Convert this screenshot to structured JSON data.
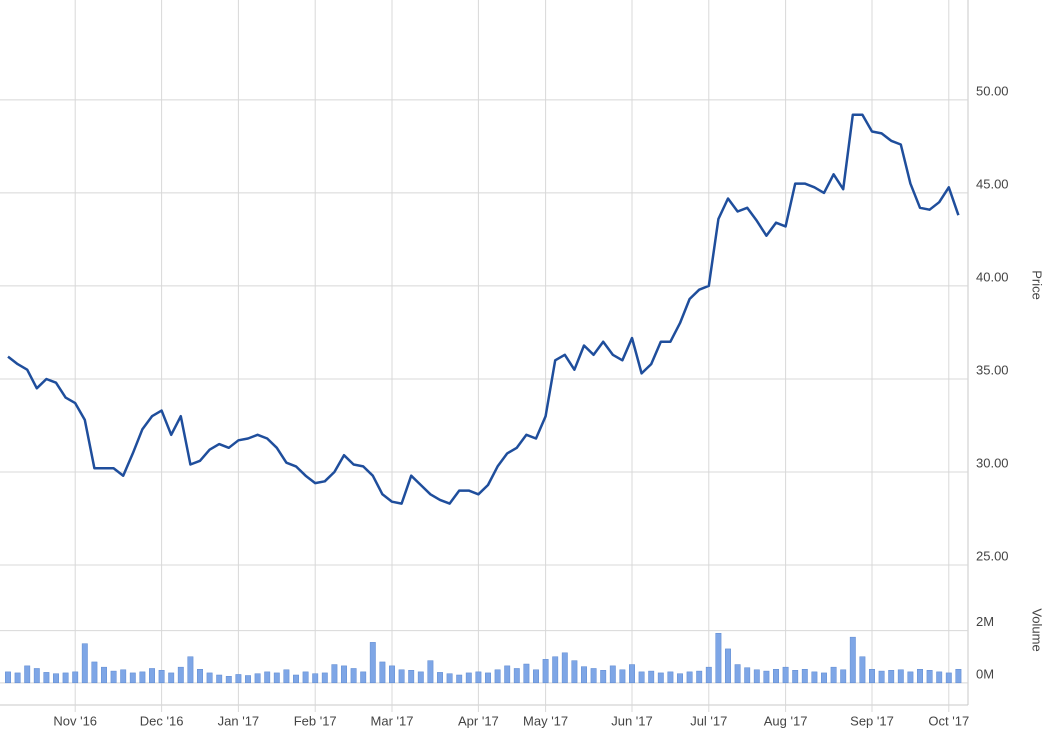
{
  "chart_data": [
    {
      "type": "line",
      "y_label": "Price",
      "color": "#1f4e9c",
      "grid": true,
      "ylim": [
        25,
        55.1
      ],
      "yticks": [
        {
          "value": 25,
          "label": "25.00"
        },
        {
          "value": 30,
          "label": "30.00"
        },
        {
          "value": 35,
          "label": "35.00"
        },
        {
          "value": 40,
          "label": "40.00"
        },
        {
          "value": 45,
          "label": "45.00"
        },
        {
          "value": 50,
          "label": "50.00"
        }
      ],
      "categories": [
        null,
        null,
        null,
        null,
        null,
        null,
        null,
        "Nov '16",
        null,
        null,
        null,
        null,
        null,
        null,
        null,
        null,
        "Dec '16",
        null,
        null,
        null,
        null,
        null,
        null,
        null,
        "Jan '17",
        null,
        null,
        null,
        null,
        null,
        null,
        null,
        "Feb '17",
        null,
        null,
        null,
        null,
        null,
        null,
        null,
        "Mar '17",
        null,
        null,
        null,
        null,
        null,
        null,
        null,
        null,
        "Apr '17",
        null,
        null,
        null,
        null,
        null,
        null,
        "May '17",
        null,
        null,
        null,
        null,
        null,
        null,
        null,
        null,
        "Jun '17",
        null,
        null,
        null,
        null,
        null,
        null,
        null,
        "Jul '17",
        null,
        null,
        null,
        null,
        null,
        null,
        null,
        "Aug '17",
        null,
        null,
        null,
        null,
        null,
        null,
        null,
        null,
        "Sep '17",
        null,
        null,
        null,
        null,
        null,
        null,
        null,
        "Oct '17",
        null
      ],
      "values": [
        36.2,
        35.8,
        35.5,
        34.5,
        35.0,
        34.8,
        34.0,
        33.7,
        32.8,
        30.2,
        30.2,
        30.2,
        29.8,
        31.0,
        32.3,
        33.0,
        33.3,
        32.0,
        33.0,
        30.4,
        30.6,
        31.2,
        31.5,
        31.3,
        31.7,
        31.8,
        32.0,
        31.8,
        31.3,
        30.5,
        30.3,
        29.8,
        29.4,
        29.5,
        30.0,
        30.9,
        30.4,
        30.3,
        29.8,
        28.8,
        28.4,
        28.3,
        29.8,
        29.3,
        28.8,
        28.5,
        28.3,
        29.0,
        29.0,
        28.8,
        29.3,
        30.3,
        31.0,
        31.3,
        32.0,
        31.8,
        33.0,
        36.0,
        36.3,
        35.5,
        36.8,
        36.3,
        37.0,
        36.3,
        36.0,
        37.2,
        35.3,
        35.8,
        37.0,
        37.0,
        38.0,
        39.3,
        39.8,
        40.0,
        43.6,
        44.7,
        44.0,
        44.2,
        43.5,
        42.7,
        43.4,
        43.2,
        45.5,
        45.5,
        45.3,
        45.0,
        46.0,
        45.2,
        49.2,
        49.2,
        48.3,
        48.2,
        47.8,
        47.6,
        45.5,
        44.2,
        44.1,
        44.5,
        45.3,
        43.8
      ]
    },
    {
      "type": "bar",
      "y_label": "Volume",
      "color": "#7ea6e6",
      "grid": true,
      "ylim": [
        -850000,
        4400000
      ],
      "yticks": [
        {
          "value": 0,
          "label": "0M"
        },
        {
          "value": 2000000,
          "label": "2M"
        }
      ],
      "values": [
        420000,
        380000,
        650000,
        550000,
        400000,
        350000,
        380000,
        420000,
        1500000,
        800000,
        600000,
        450000,
        500000,
        380000,
        420000,
        550000,
        480000,
        380000,
        600000,
        1000000,
        520000,
        380000,
        300000,
        250000,
        320000,
        280000,
        350000,
        420000,
        380000,
        500000,
        300000,
        420000,
        350000,
        380000,
        700000,
        650000,
        550000,
        420000,
        1550000,
        800000,
        650000,
        500000,
        480000,
        420000,
        850000,
        400000,
        350000,
        300000,
        380000,
        420000,
        380000,
        500000,
        650000,
        550000,
        720000,
        500000,
        900000,
        1000000,
        1150000,
        850000,
        620000,
        550000,
        480000,
        650000,
        500000,
        700000,
        420000,
        450000,
        380000,
        420000,
        350000,
        420000,
        450000,
        600000,
        1900000,
        1300000,
        700000,
        580000,
        500000,
        450000,
        520000,
        600000,
        480000,
        520000,
        420000,
        380000,
        600000,
        500000,
        1750000,
        1000000,
        520000,
        450000,
        480000,
        500000,
        420000,
        520000,
        480000,
        420000,
        380000,
        520000
      ]
    }
  ]
}
